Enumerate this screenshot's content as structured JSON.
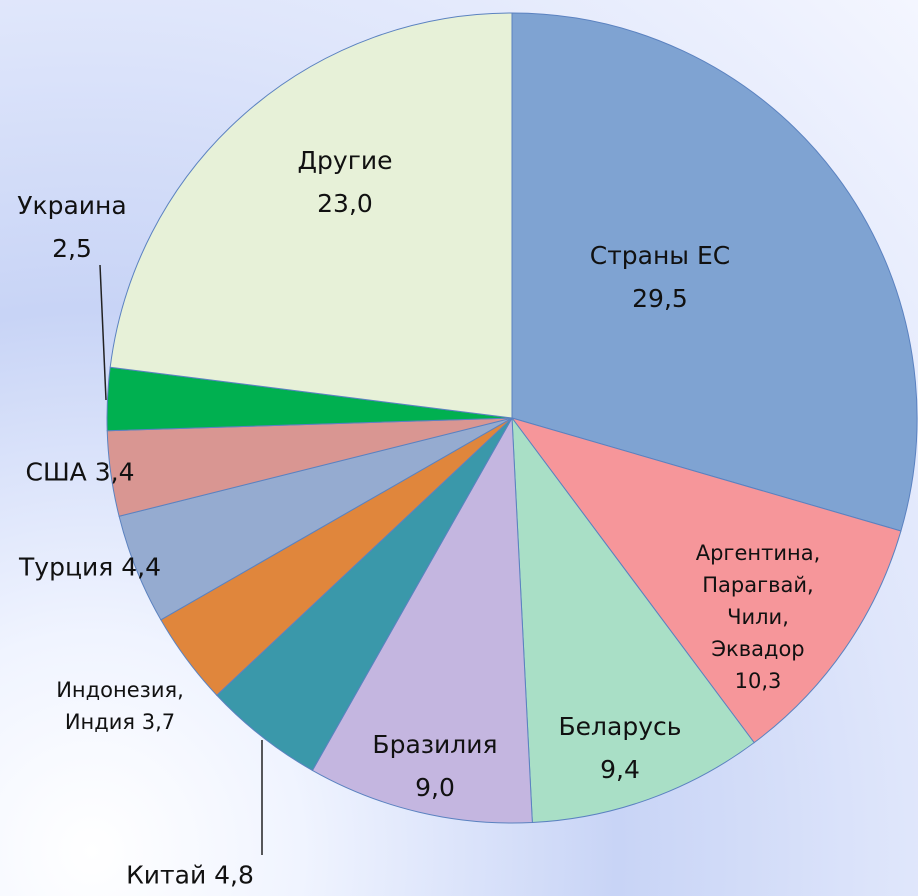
{
  "chart_data": {
    "type": "pie",
    "categories": [
      "Страны ЕС",
      "Аргентина, Парагвай, Чили, Эквадор",
      "Беларусь",
      "Бразилия",
      "Китай",
      "Индонезия, Индия",
      "Турция",
      "США",
      "Украина",
      "Другие"
    ],
    "values": [
      29.5,
      10.3,
      9.4,
      9.0,
      4.8,
      3.7,
      4.4,
      3.4,
      2.5,
      23.0
    ],
    "value_labels": [
      "29,5",
      "10,3",
      "9,4",
      "9,0",
      "4,8",
      "3,7",
      "4,4",
      "3,4",
      "2,5",
      "23,0"
    ],
    "colors": [
      "#7fa3d2",
      "#f6969a",
      "#a9dfc6",
      "#c4b6e0",
      "#3a98aa",
      "#e0863c",
      "#95abd0",
      "#d99692",
      "#00b050",
      "#e7f1d8"
    ]
  }
}
